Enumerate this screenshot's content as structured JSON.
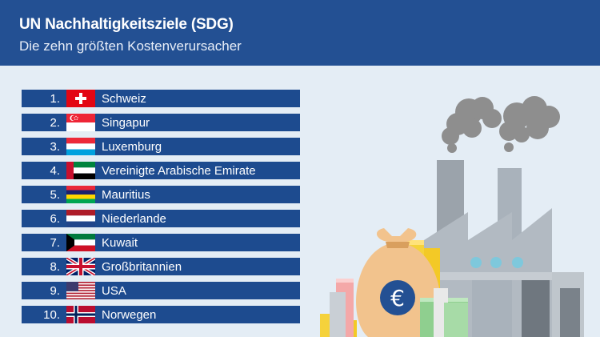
{
  "header": {
    "title": "UN Nachhaltigkeitsziele (SDG)",
    "subtitle": "Die zehn größten Kostenverursacher"
  },
  "ranking": [
    {
      "rank": "1.",
      "name": "Schweiz",
      "flag": "flag-switzerland"
    },
    {
      "rank": "2.",
      "name": "Singapur",
      "flag": "flag-singapore"
    },
    {
      "rank": "3.",
      "name": "Luxemburg",
      "flag": "flag-luxembourg"
    },
    {
      "rank": "4.",
      "name": "Vereinigte Arabische Emirate",
      "flag": "flag-uae"
    },
    {
      "rank": "5.",
      "name": "Mauritius",
      "flag": "flag-mauritius"
    },
    {
      "rank": "6.",
      "name": "Niederlande",
      "flag": "flag-netherlands"
    },
    {
      "rank": "7.",
      "name": "Kuwait",
      "flag": "flag-kuwait"
    },
    {
      "rank": "8.",
      "name": "Großbritannien",
      "flag": "flag-uk"
    },
    {
      "rank": "9.",
      "name": "USA",
      "flag": "flag-usa"
    },
    {
      "rank": "10.",
      "name": "Norwegen",
      "flag": "flag-norway"
    }
  ],
  "illustration": {
    "currency_symbol": "€",
    "colors": {
      "header_bg": "#235093",
      "row_bg": "#1d4b8f",
      "page_bg": "#e4edf5",
      "factory": "#a9b2bb",
      "smoke": "#8e8e8e",
      "money_bag": "#f2c38d",
      "coins": "#f5d23b"
    }
  }
}
